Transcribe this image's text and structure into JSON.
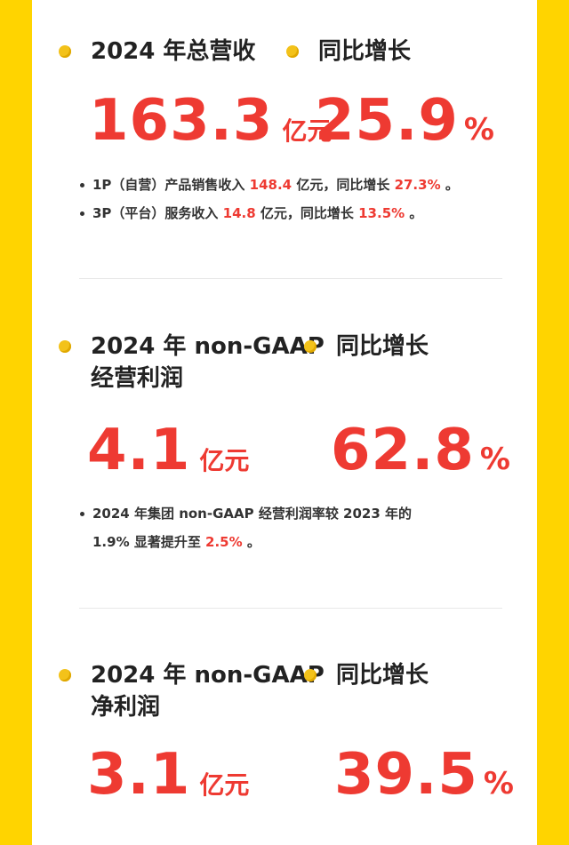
{
  "revenue": {
    "title": "2024 年总营收",
    "growth_label": "同比增长",
    "value": "163.3",
    "unit": "亿元",
    "growth_value": "25.9",
    "percent_sign": "%",
    "bullets": [
      {
        "pre": "1P（自营）产品销售收入 ",
        "v1": "148.4",
        "mid": " 亿元，同比增长 ",
        "v2": "27.3%",
        "post": " 。"
      },
      {
        "pre": "3P（平台）服务收入 ",
        "v1": "14.8",
        "mid": " 亿元，同比增长 ",
        "v2": "13.5%",
        "post": " 。"
      }
    ]
  },
  "operating_profit": {
    "title_line1": "2024 年 non-GAAP",
    "title_line2": "经营利润",
    "growth_label": "同比增长",
    "value": "4.1",
    "unit": "亿元",
    "growth_value": "62.8",
    "percent_sign": "%",
    "bullet_line1": "2024 年集团 non-GAAP 经营利润率较 2023 年的",
    "bullet_line2_pre": "1.9% 显著提升至 ",
    "bullet_line2_value": "2.5%",
    "bullet_line2_post": " 。"
  },
  "net_profit": {
    "title_line1": "2024 年 non-GAAP",
    "title_line2": "净利润",
    "growth_label": "同比增长",
    "value": "3.1",
    "unit": "亿元",
    "growth_value": "39.5",
    "percent_sign": "%"
  },
  "colors": {
    "background": "#ffd400",
    "accent_red": "#ee3a32",
    "bullet_dot": "#f3c21a"
  }
}
